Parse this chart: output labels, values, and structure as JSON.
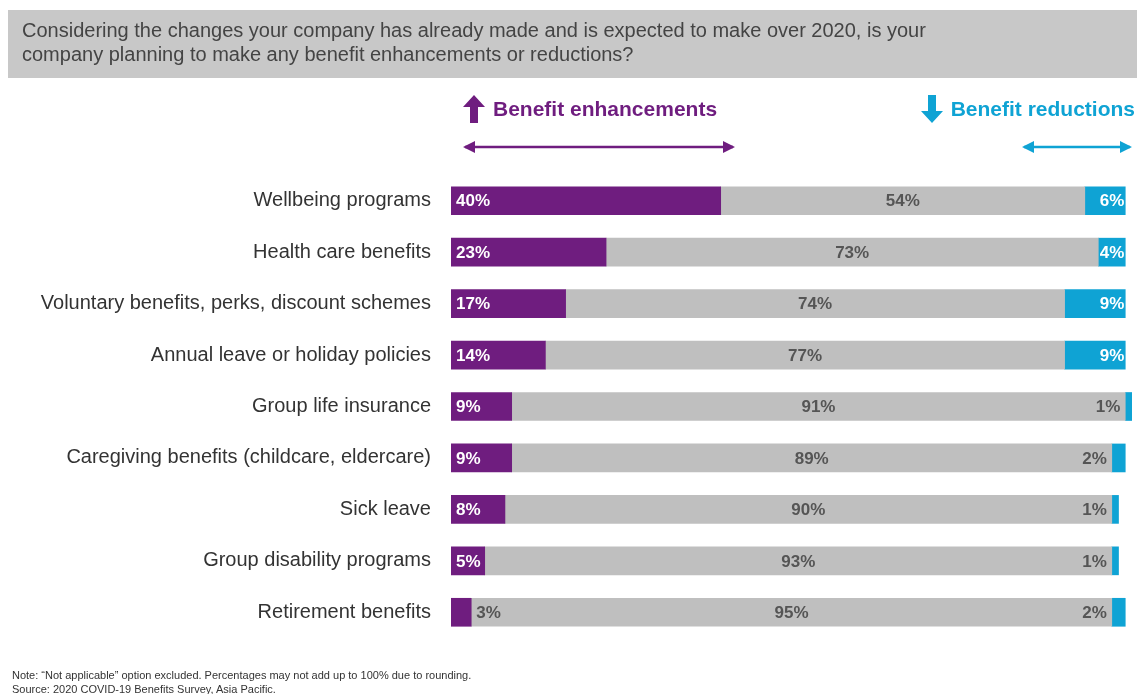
{
  "chart_data": {
    "type": "bar",
    "orientation": "horizontal",
    "stacked": true,
    "title": "Considering the changes your company has already made and is expected to make over 2020, is your company planning to make any benefit enhancements or reductions?",
    "categories": [
      "Wellbeing programs",
      "Health care benefits",
      "Voluntary benefits, perks, discount schemes",
      "Annual leave or holiday policies",
      "Group life insurance",
      "Caregiving benefits (childcare, eldercare)",
      "Sick leave",
      "Group disability programs",
      "Retirement benefits"
    ],
    "series": [
      {
        "name": "Benefit enhancements",
        "color": "#6f1d7f",
        "values": [
          40,
          23,
          17,
          14,
          9,
          9,
          8,
          5,
          3
        ],
        "value_labels": [
          "40%",
          "23%",
          "17%",
          "14%",
          "9%",
          "9%",
          "8%",
          "5%",
          "3%"
        ]
      },
      {
        "color": "#bfbfbf",
        "values": [
          54,
          73,
          74,
          77,
          91,
          89,
          90,
          93,
          95
        ],
        "value_labels": [
          "54%",
          "73%",
          "74%",
          "77%",
          "91%",
          "89%",
          "90%",
          "93%",
          "95%"
        ]
      },
      {
        "name": "Benefit reductions",
        "color": "#0fa3d4",
        "values": [
          6,
          4,
          9,
          9,
          1,
          2,
          1,
          1,
          2
        ],
        "value_labels": [
          "6%",
          "4%",
          "9%",
          "9%",
          "1%",
          "2%",
          "1%",
          "1%",
          "2%"
        ]
      }
    ],
    "xlim": [
      0,
      101
    ],
    "tick_labels": "y",
    "legend": "top",
    "annotations": [
      "Note: “Not applicable” option excluded. Percentages may not add up to 100% due to rounding.",
      "Source: 2020 COVID-19 Benefits Survey, Asia Pacific."
    ]
  }
}
